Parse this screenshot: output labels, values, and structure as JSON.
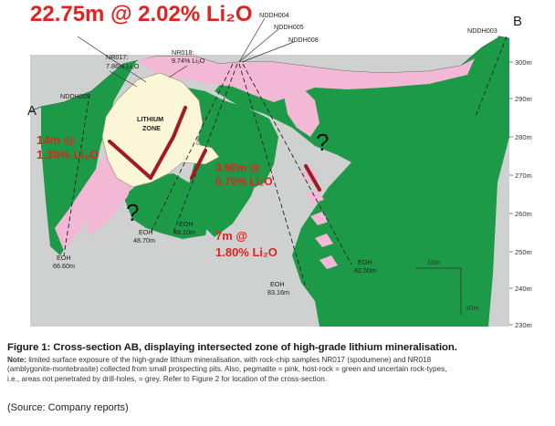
{
  "headline": "22.75m @ 2.02% Li₂O",
  "section_ends": {
    "left": "A",
    "right": "B"
  },
  "drill_holes": [
    "NDDH009",
    "NR017:",
    "NR018:",
    "NDDH004",
    "NDDH005",
    "NDDH008",
    "NDDH003"
  ],
  "samples": {
    "nr017_grade": "7.86% Li₂O",
    "nr018_grade": "9.74% Li₂O"
  },
  "zone_label_1": "LITHIUM",
  "zone_label_2": "ZONE",
  "intercepts": {
    "i1_line1": "14m @",
    "i1_line2": "1.39% Li₂O",
    "i2_line1": "3.90m @",
    "i2_line2": "0.70% Li₂O",
    "i3_line1": "7m @",
    "i3_line2": "1.80% Li₂O"
  },
  "eoh": {
    "label": "EOH",
    "d1": "66.60m",
    "d2": "48.70m",
    "d3": "48.10m",
    "d4": "83.16m",
    "d5": "62.50m"
  },
  "elevations": [
    "300m",
    "290m",
    "280m",
    "270m",
    "260m",
    "250m",
    "240m",
    "230m"
  ],
  "scale": {
    "horizontal": "10m",
    "vertical": "10m"
  },
  "question_mark": "?",
  "caption": {
    "title": "Figure 1: Cross-section AB, displaying intersected zone of high-grade lithium mineralisation.",
    "note_label": "Note:",
    "note_line1": " limited surface exposure of the high-grade lithium mineralisation, with rock-chip samples NR017 (spodumene) and NR018",
    "note_line2": "(amblygonite-montebrasite) collected from small prospecting pits. Also, pegmatite = pink, host-rock = green and uncertain rock-types,",
    "note_line3": "i.e., areas not penetrated by drill-holes, = grey. Refer to Figure 2 for location of the cross-section."
  },
  "source": "(Source: Company reports)",
  "colors": {
    "grey": "#cfd0d0",
    "green": "#1c9a48",
    "pink": "#f2b8d6",
    "cream": "#fbf6d8",
    "red_text": "#e0231f",
    "drill_red": "#a01a1f"
  }
}
